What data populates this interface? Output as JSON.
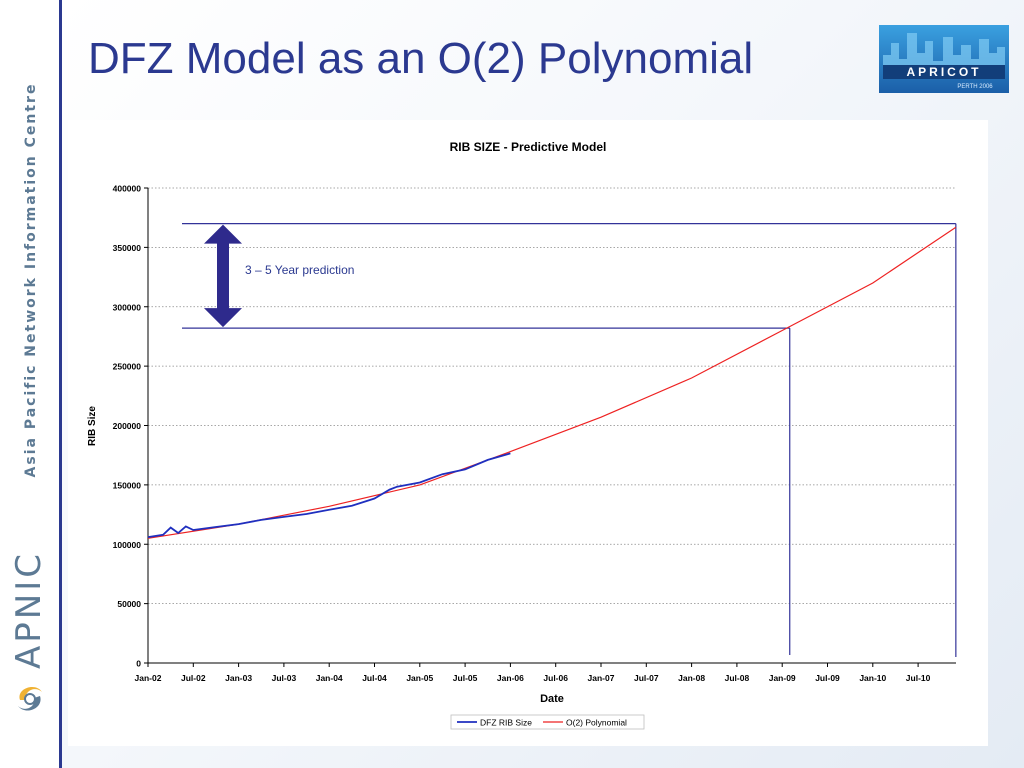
{
  "slide": {
    "title": "DFZ Model as an O(2) Polynomial",
    "sidebar_text": "Asia Pacific Network Information Centre",
    "logo_text": "APNIC",
    "apricot_logo_text": "APRICOT",
    "apricot_logo_subtext": "PERTH 2006",
    "accent_color": "#2b3990",
    "sidebar_text_color": "#5d7a94"
  },
  "chart_data": {
    "type": "line",
    "title": "RIB SIZE - Predictive Model",
    "xlabel": "Date",
    "ylabel": "RIB Size",
    "x_ticks": [
      "Jan-02",
      "Jul-02",
      "Jan-03",
      "Jul-03",
      "Jan-04",
      "Jul-04",
      "Jan-05",
      "Jul-05",
      "Jan-06",
      "Jul-06",
      "Jan-07",
      "Jul-07",
      "Jan-08",
      "Jul-08",
      "Jan-09",
      "Jul-09",
      "Jan-10",
      "Jul-10"
    ],
    "x_range": [
      "Jan-02",
      "Dec-10"
    ],
    "y_ticks": [
      0,
      50000,
      100000,
      150000,
      200000,
      250000,
      300000,
      350000,
      400000
    ],
    "ylim": [
      0,
      400000
    ],
    "grid": true,
    "legend_position": "bottom",
    "series": [
      {
        "name": "DFZ RIB Size",
        "color": "#1f2fbf",
        "x": [
          "Jan-02",
          "Mar-02",
          "Apr-02",
          "May-02",
          "Jun-02",
          "Jul-02",
          "Oct-02",
          "Jan-03",
          "Apr-03",
          "Jul-03",
          "Oct-03",
          "Jan-04",
          "Apr-04",
          "Jul-04",
          "Sep-04",
          "Oct-04",
          "Jan-05",
          "Apr-05",
          "Jul-05",
          "Oct-05",
          "Jan-06"
        ],
        "y": [
          106000,
          108000,
          114000,
          109500,
          115000,
          112000,
          114500,
          117000,
          120500,
          123000,
          125500,
          129000,
          132500,
          138500,
          146000,
          148500,
          152000,
          159000,
          163000,
          171000,
          176500
        ]
      },
      {
        "name": "O(2) Polynomial",
        "color": "#ee2222",
        "x": [
          "Jan-02",
          "Jan-03",
          "Jan-04",
          "Jan-05",
          "Jan-06",
          "Jan-07",
          "Jan-08",
          "Jan-09",
          "Jan-10",
          "Dec-10"
        ],
        "y": [
          105000,
          117000,
          132000,
          150000,
          178000,
          207000,
          240000,
          280000,
          320000,
          367000
        ]
      }
    ],
    "annotations": [
      {
        "text": "3 – 5 Year prediction",
        "from_y": 282000,
        "to_y": 370000,
        "lines_at_x": [
          "Feb-09",
          "Dec-10"
        ]
      }
    ]
  }
}
